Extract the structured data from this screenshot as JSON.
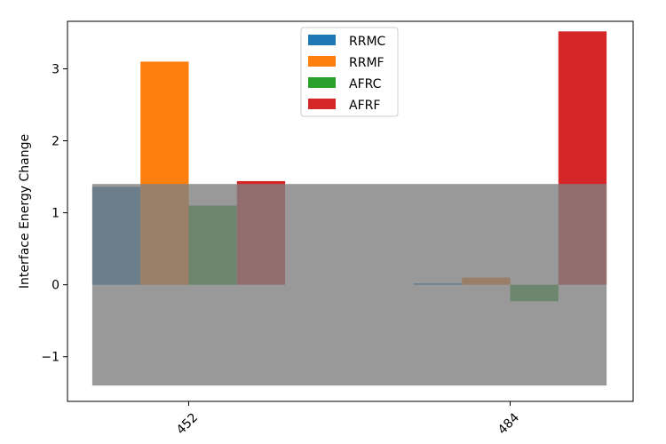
{
  "chart_data": {
    "type": "bar",
    "categories": [
      "452",
      "484"
    ],
    "series": [
      {
        "name": "RRMC",
        "color": "#1f77b4",
        "values": [
          1.36,
          0.02
        ]
      },
      {
        "name": "RRMF",
        "color": "#ff7f0e",
        "values": [
          3.1,
          0.1
        ]
      },
      {
        "name": "AFRC",
        "color": "#2ca02c",
        "values": [
          1.1,
          -0.23
        ]
      },
      {
        "name": "AFRF",
        "color": "#d62728",
        "values": [
          1.44,
          3.52
        ]
      }
    ],
    "ylabel": "Interface Energy Change",
    "xlabel": "",
    "ylim": [
      -1.62,
      3.66
    ],
    "yticks": [
      -1,
      0,
      1,
      2,
      3
    ],
    "ytick_labels": [
      "−1",
      "0",
      "1",
      "2",
      "3"
    ],
    "overlay_band": {
      "y0": -1.4,
      "y1": 1.4,
      "color": "#808080"
    },
    "legend_position": "top-center",
    "grid": false
  }
}
